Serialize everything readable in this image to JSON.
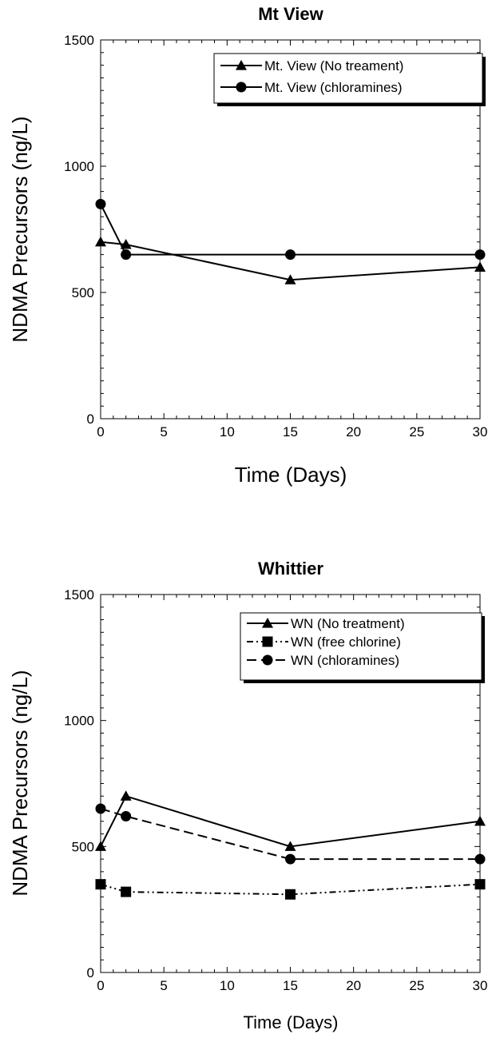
{
  "chart_data": [
    {
      "type": "line",
      "title": "Mt View",
      "xlabel": "Time (Days)",
      "ylabel": "NDMA Precursors (ng/L)",
      "xlim": [
        0,
        30
      ],
      "ylim": [
        0,
        1500
      ],
      "xticks": [
        0,
        5,
        10,
        15,
        20,
        25,
        30
      ],
      "yticks": [
        0,
        500,
        1000,
        1500
      ],
      "legend_position": "top-right",
      "series": [
        {
          "name": "Mt. View (No treament)",
          "marker": "triangle",
          "dash": "solid",
          "x": [
            0,
            2,
            15,
            30
          ],
          "y": [
            700,
            690,
            550,
            600
          ]
        },
        {
          "name": "Mt. View (chloramines)",
          "marker": "circle",
          "dash": "solid",
          "x": [
            0,
            2,
            15,
            30
          ],
          "y": [
            850,
            650,
            650,
            650
          ]
        }
      ]
    },
    {
      "type": "line",
      "title": "Whittier",
      "xlabel": "Time (Days)",
      "ylabel": "NDMA Precursors (ng/L)",
      "xlim": [
        0,
        30
      ],
      "ylim": [
        0,
        1500
      ],
      "xticks": [
        0,
        5,
        10,
        15,
        20,
        25,
        30
      ],
      "yticks": [
        0,
        500,
        1000,
        1500
      ],
      "legend_position": "top-right",
      "series": [
        {
          "name": "WN (No treatment)",
          "marker": "triangle",
          "dash": "solid",
          "x": [
            0,
            2,
            15,
            30
          ],
          "y": [
            500,
            700,
            500,
            600
          ]
        },
        {
          "name": "WN (free chlorine)",
          "marker": "square",
          "dash": "dashdotdot",
          "x": [
            0,
            2,
            15,
            30
          ],
          "y": [
            350,
            320,
            310,
            350
          ]
        },
        {
          "name": "WN (chloramines)",
          "marker": "circle",
          "dash": "dashed",
          "x": [
            0,
            2,
            15,
            30
          ],
          "y": [
            650,
            620,
            450,
            450
          ]
        }
      ]
    }
  ]
}
